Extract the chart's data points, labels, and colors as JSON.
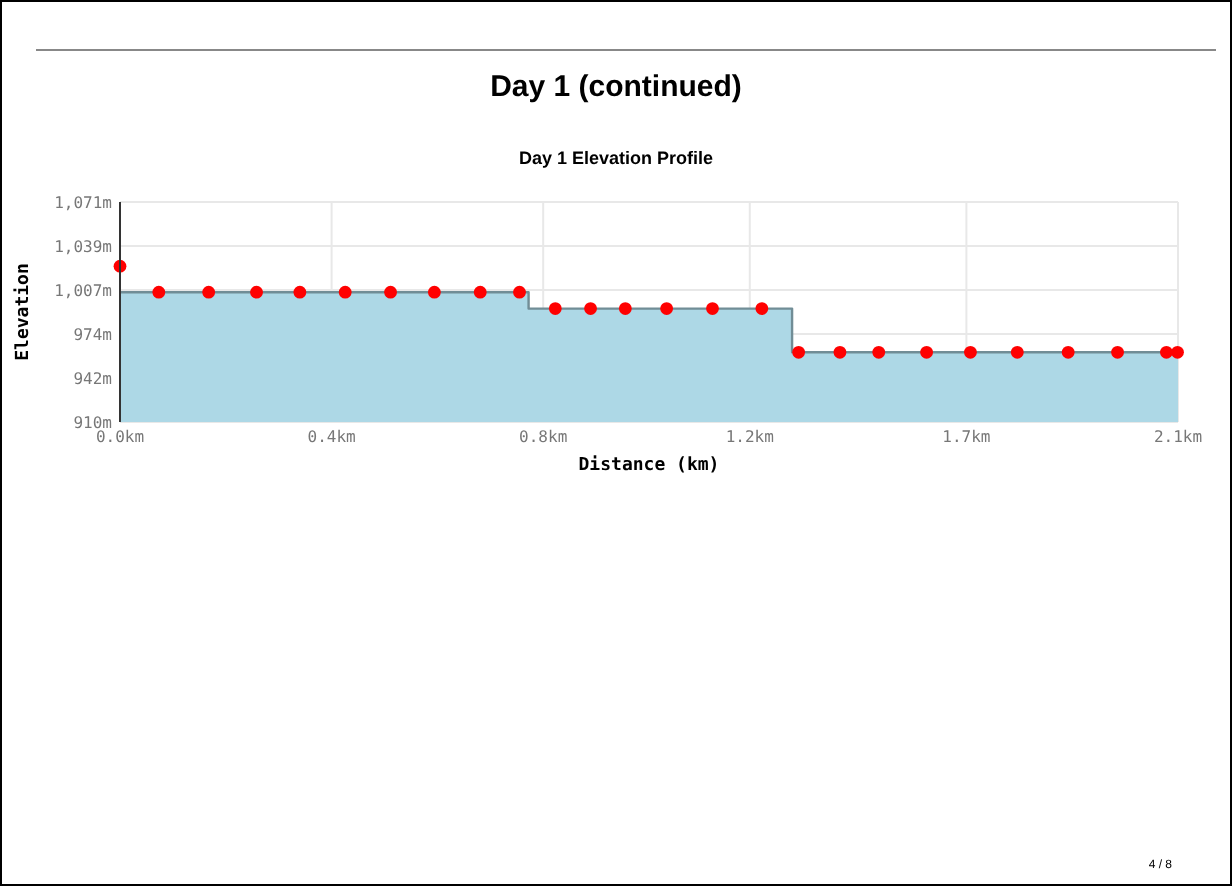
{
  "chart_data": {
    "type": "area",
    "title": "Day 1 (continued)",
    "subtitle": "Day 1 Elevation Profile",
    "xlabel": "Distance (km)",
    "ylabel": "Elevation",
    "xlim": [
      0,
      2.1
    ],
    "xticks": [
      {
        "value": 0,
        "label": "0.0km"
      },
      {
        "value": 0.42,
        "label": "0.4km"
      },
      {
        "value": 0.84,
        "label": "0.8km"
      },
      {
        "value": 1.25,
        "label": "1.2km"
      },
      {
        "value": 1.68,
        "label": "1.7km"
      },
      {
        "value": 2.1,
        "label": "2.1km"
      }
    ],
    "ylim": [
      910,
      1071
    ],
    "yticks": [
      {
        "value": 910,
        "label": "910m"
      },
      {
        "value": 942.2,
        "label": "942m"
      },
      {
        "value": 974.4,
        "label": "974m"
      },
      {
        "value": 1006.6,
        "label": "1,007m"
      },
      {
        "value": 1038.8,
        "label": "1,039m"
      },
      {
        "value": 1071,
        "label": "1,071m"
      }
    ],
    "grid": true,
    "series": [
      {
        "color": "#add8e6",
        "x": [
          0,
          0.811,
          0.811,
          1.334,
          1.334,
          2.1
        ],
        "values": [
          1005,
          1005,
          993,
          993,
          961,
          961
        ]
      },
      {
        "type": "scatter",
        "color": "#ff0000",
        "marker": "circle",
        "x": [
          0,
          0.077,
          0.176,
          0.271,
          0.357,
          0.447,
          0.537,
          0.624,
          0.715,
          0.793,
          0.864,
          0.934,
          1.003,
          1.085,
          1.176,
          1.274,
          1.347,
          1.429,
          1.506,
          1.601,
          1.688,
          1.781,
          1.882,
          1.98,
          2.077,
          2.099
        ],
        "values": [
          1024,
          1005,
          1005,
          1005,
          1005,
          1005,
          1005,
          1005,
          1005,
          1005,
          993,
          993,
          993,
          993,
          993,
          993,
          961,
          961,
          961,
          961,
          961,
          961,
          961,
          961,
          961,
          961
        ]
      }
    ],
    "annotations": [
      "4 / 8"
    ]
  }
}
